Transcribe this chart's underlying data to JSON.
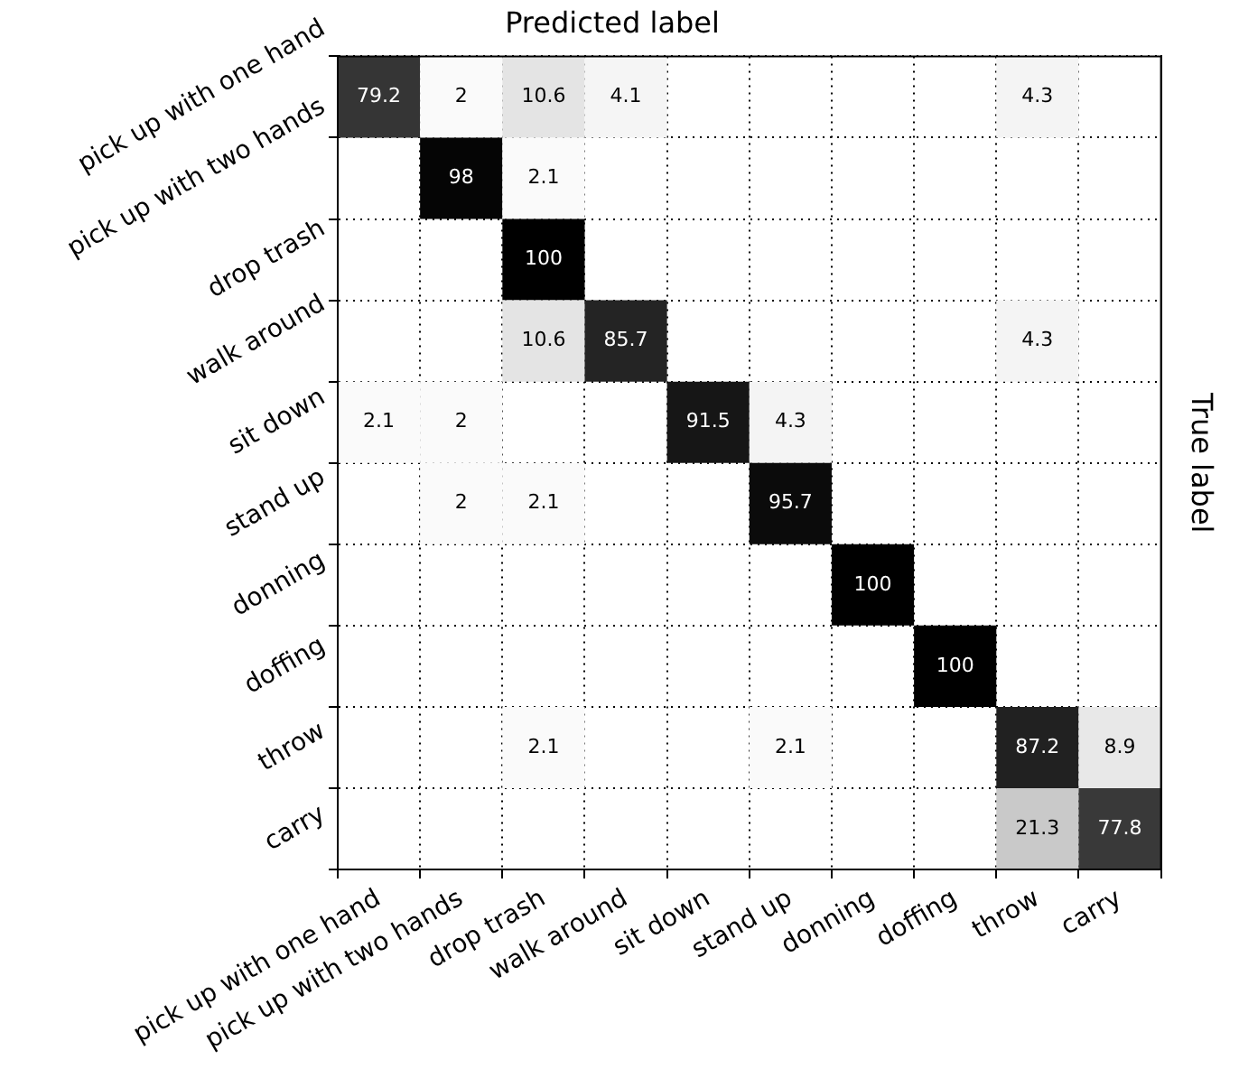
{
  "chart_data": {
    "type": "heatmap",
    "xlabel": "Predicted label",
    "ylabel": "True label",
    "grid": true,
    "data_labels": true,
    "categories": [
      "pick up with one hand",
      "pick up with two hands",
      "drop trash",
      "walk around",
      "sit down",
      "stand up",
      "donning",
      "doffing",
      "throw",
      "carry"
    ],
    "y_categories": [
      "pick up with one hand",
      "pick up with two hands",
      "drop trash",
      "walk around",
      "sit down",
      "stand up",
      "donning",
      "doffing",
      "throw",
      "carry"
    ],
    "cells": [
      [
        79.2,
        2,
        10.6,
        4.1,
        null,
        null,
        null,
        null,
        4.3,
        null
      ],
      [
        null,
        98,
        2.1,
        null,
        null,
        null,
        null,
        null,
        null,
        null
      ],
      [
        null,
        null,
        100,
        null,
        null,
        null,
        null,
        null,
        null,
        null
      ],
      [
        null,
        null,
        10.6,
        85.7,
        null,
        null,
        null,
        null,
        4.3,
        null
      ],
      [
        2.1,
        2,
        null,
        null,
        91.5,
        4.3,
        null,
        null,
        null,
        null
      ],
      [
        null,
        2,
        2.1,
        null,
        null,
        95.7,
        null,
        null,
        null,
        null
      ],
      [
        null,
        null,
        null,
        null,
        null,
        null,
        100,
        null,
        null,
        null
      ],
      [
        null,
        null,
        null,
        null,
        null,
        null,
        null,
        100,
        null,
        null
      ],
      [
        null,
        null,
        2.1,
        null,
        null,
        2.1,
        null,
        null,
        87.2,
        8.9
      ],
      [
        null,
        null,
        null,
        null,
        null,
        null,
        null,
        null,
        21.3,
        77.8
      ]
    ]
  }
}
